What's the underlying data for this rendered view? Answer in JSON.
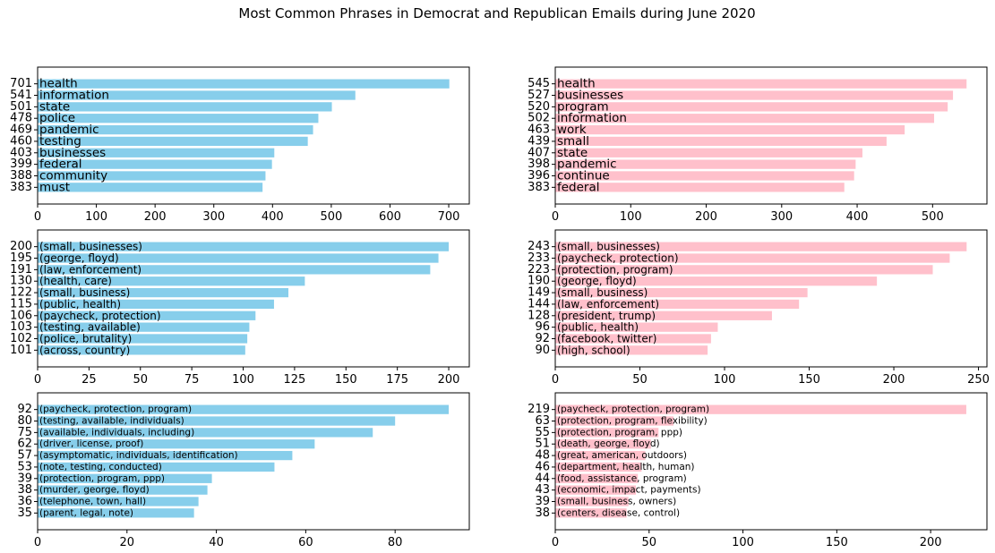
{
  "figure": {
    "title": "Most Common Phrases in Democrat and Republican Emails during June 2020"
  },
  "colors": {
    "democrat": "#87ceeb",
    "republican": "#ffc0cb"
  },
  "chart_data": [
    {
      "type": "bar",
      "orientation": "horizontal",
      "party": "democrat",
      "grid": false,
      "categories": [
        "health",
        "information",
        "state",
        "police",
        "pandemic",
        "testing",
        "businesses",
        "federal",
        "community",
        "must"
      ],
      "values": [
        701,
        541,
        501,
        478,
        469,
        460,
        403,
        399,
        388,
        383
      ],
      "xlim": [
        0,
        735
      ],
      "xticks": [
        0,
        100,
        200,
        300,
        400,
        500,
        600,
        700
      ]
    },
    {
      "type": "bar",
      "orientation": "horizontal",
      "party": "republican",
      "grid": false,
      "categories": [
        "health",
        "businesses",
        "program",
        "information",
        "work",
        "small",
        "state",
        "pandemic",
        "continue",
        "federal"
      ],
      "values": [
        545,
        527,
        520,
        502,
        463,
        439,
        407,
        398,
        396,
        383
      ],
      "xlim": [
        0,
        572
      ],
      "xticks": [
        0,
        100,
        200,
        300,
        400,
        500
      ]
    },
    {
      "type": "bar",
      "orientation": "horizontal",
      "party": "democrat",
      "grid": false,
      "categories": [
        "(small, businesses)",
        "(george, floyd)",
        "(law, enforcement)",
        "(health, care)",
        "(small, business)",
        "(public, health)",
        "(paycheck, protection)",
        "(testing, available)",
        "(police, brutality)",
        "(across, country)"
      ],
      "values": [
        200,
        195,
        191,
        130,
        122,
        115,
        106,
        103,
        102,
        101
      ],
      "xlim": [
        0,
        210
      ],
      "xticks": [
        0,
        25,
        50,
        75,
        100,
        125,
        150,
        175,
        200
      ]
    },
    {
      "type": "bar",
      "orientation": "horizontal",
      "party": "republican",
      "grid": false,
      "categories": [
        "(small, businesses)",
        "(paycheck, protection)",
        "(protection, program)",
        "(george, floyd)",
        "(small, business)",
        "(law, enforcement)",
        "(president, trump)",
        "(public, health)",
        "(facebook, twitter)",
        "(high, school)"
      ],
      "values": [
        243,
        233,
        223,
        190,
        149,
        144,
        128,
        96,
        92,
        90
      ],
      "xlim": [
        0,
        255
      ],
      "xticks": [
        0,
        50,
        100,
        150,
        200,
        250
      ]
    },
    {
      "type": "bar",
      "orientation": "horizontal",
      "party": "democrat",
      "grid": false,
      "categories": [
        "(paycheck, protection, program)",
        "(testing, available, individuals)",
        "(available, individuals, including)",
        "(driver, license, proof)",
        "(asymptomatic, individuals, identification)",
        "(note, testing, conducted)",
        "(protection, program, ppp)",
        "(murder, george, floyd)",
        "(telephone, town, hall)",
        "(parent, legal, note)"
      ],
      "values": [
        92,
        80,
        75,
        62,
        57,
        53,
        39,
        38,
        36,
        35
      ],
      "xlim": [
        0,
        96.6
      ],
      "xticks": [
        0,
        20,
        40,
        60,
        80
      ]
    },
    {
      "type": "bar",
      "orientation": "horizontal",
      "party": "republican",
      "grid": false,
      "categories": [
        "(paycheck, protection, program)",
        "(protection, program, flexibility)",
        "(protection, program, ppp)",
        "(death, george, floyd)",
        "(great, american, outdoors)",
        "(department, health, human)",
        "(food, assistance, program)",
        "(economic, impact, payments)",
        "(small, business, owners)",
        "(centers, disease, control)"
      ],
      "values": [
        219,
        63,
        55,
        51,
        48,
        46,
        44,
        43,
        39,
        38
      ],
      "xlim": [
        0,
        230
      ],
      "xticks": [
        0,
        50,
        100,
        150,
        200
      ]
    }
  ]
}
